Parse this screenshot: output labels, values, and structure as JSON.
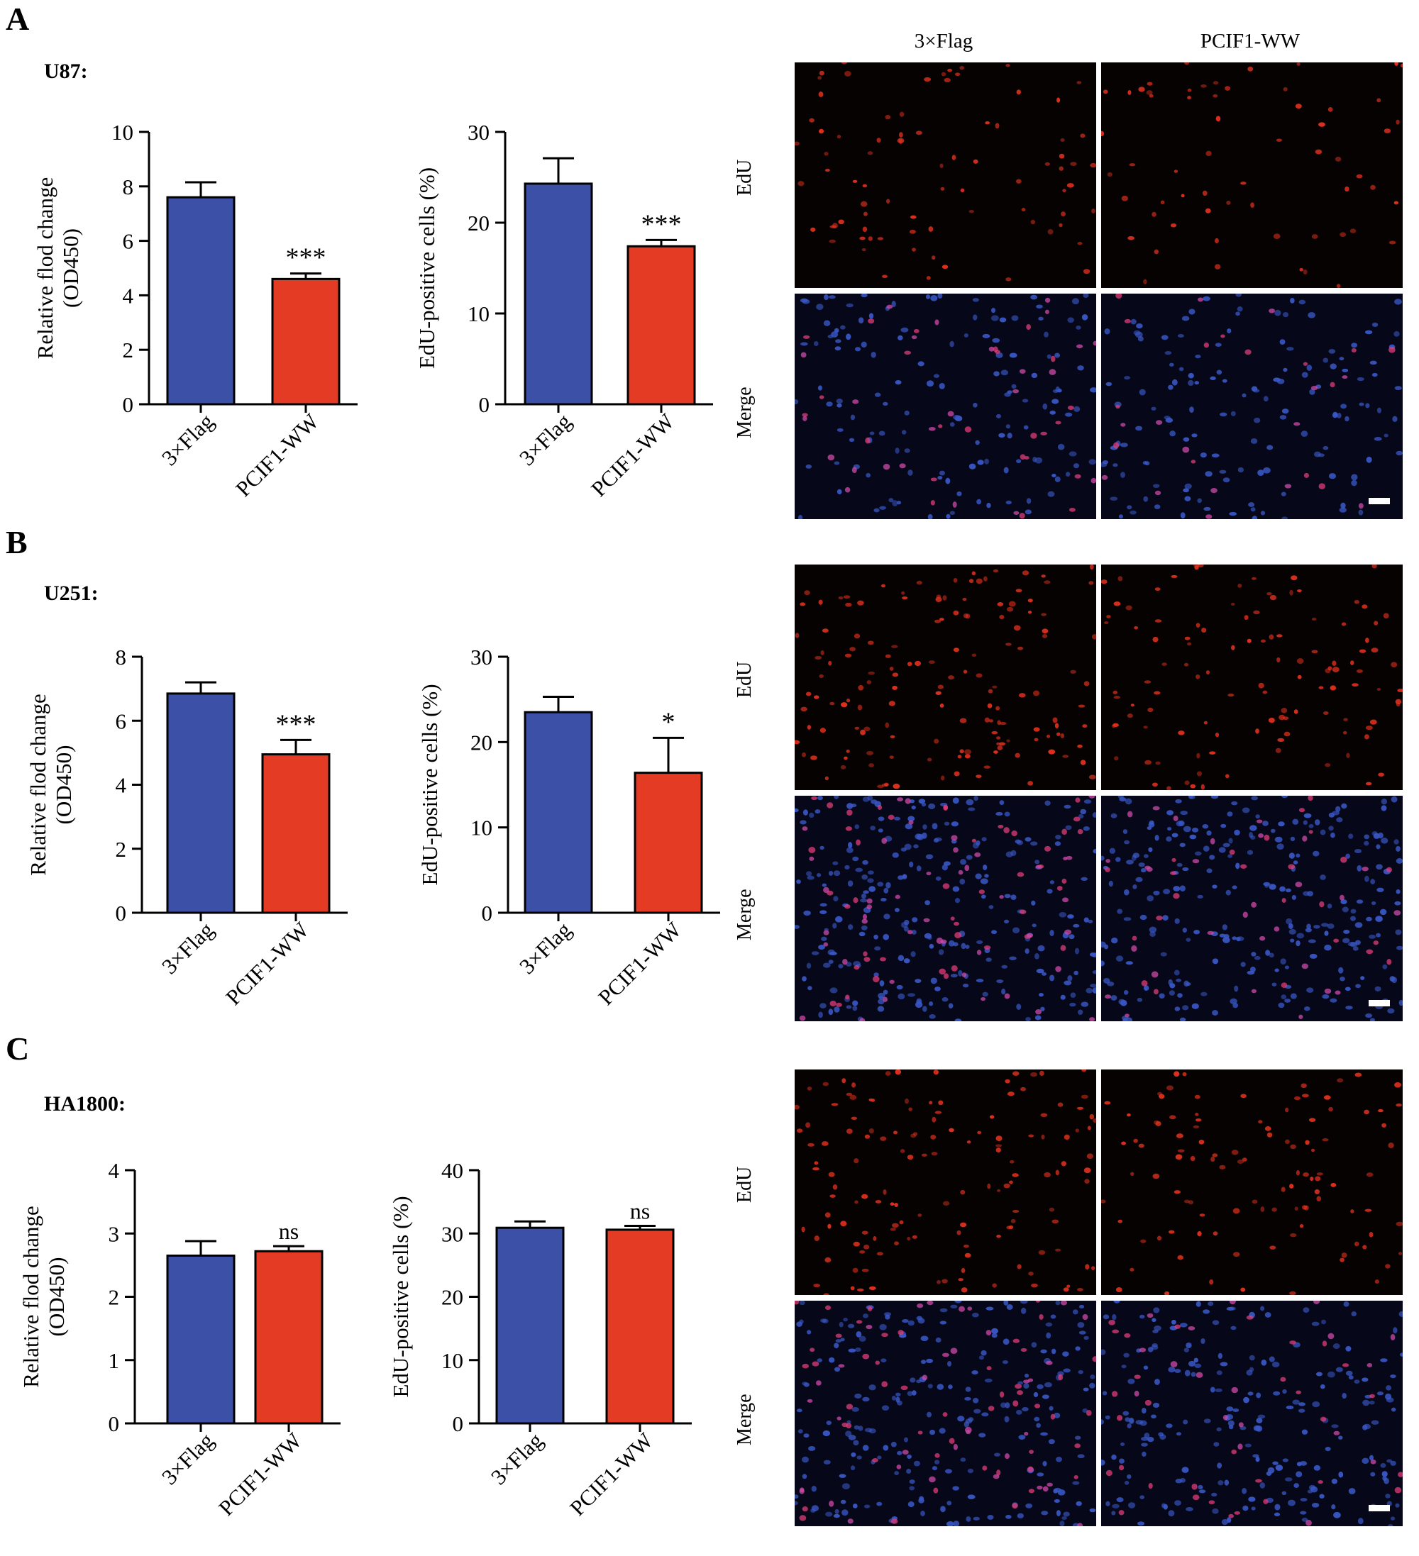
{
  "panels": [
    {
      "letter": "A",
      "cell_line": "U87:",
      "channels": [
        "EdU",
        "Merge"
      ],
      "channel_colors": {
        "EdU": "#e8321e",
        "Merge": "#3f5fd8"
      }
    },
    {
      "letter": "B",
      "cell_line": "U251:",
      "channels": [
        "EdU",
        "Merge"
      ],
      "channel_colors": {
        "EdU": "#e8321e",
        "Merge": "#3f5fd8"
      }
    },
    {
      "letter": "C",
      "cell_line": "HA1800:",
      "channels": [
        "EdU",
        "Merge"
      ],
      "channel_colors": {
        "EdU": "#e8321e",
        "Merge": "#3f5fd8"
      }
    }
  ],
  "image_columns": [
    "3×Flag",
    "PCIF1-WW"
  ],
  "chart_data": [
    {
      "panel": "A",
      "type": "bar",
      "ylabel": [
        "Relative flod change",
        "(OD450)"
      ],
      "ylim": [
        0,
        10
      ],
      "yticks": [
        0,
        2,
        4,
        6,
        8,
        10
      ],
      "categories": [
        "3×Flag",
        "PCIF1-WW"
      ],
      "values": [
        7.6,
        4.6
      ],
      "errors": [
        0.55,
        0.2
      ],
      "annotations": [
        "",
        "***"
      ],
      "colors": [
        "#3c50a8",
        "#e33b24"
      ]
    },
    {
      "panel": "A",
      "type": "bar",
      "ylabel": [
        "EdU-positive cells (%)"
      ],
      "ylim": [
        0,
        30
      ],
      "yticks": [
        0,
        10,
        20,
        30
      ],
      "categories": [
        "3×Flag",
        "PCIF1-WW"
      ],
      "values": [
        24.3,
        17.4
      ],
      "errors": [
        2.8,
        0.7
      ],
      "annotations": [
        "",
        "***"
      ],
      "colors": [
        "#3c50a8",
        "#e33b24"
      ]
    },
    {
      "panel": "B",
      "type": "bar",
      "ylabel": [
        "Relative flod change",
        "(OD450)"
      ],
      "ylim": [
        0,
        8
      ],
      "yticks": [
        0,
        2,
        4,
        6,
        8
      ],
      "categories": [
        "3×Flag",
        "PCIF1-WW"
      ],
      "values": [
        6.85,
        4.95
      ],
      "errors": [
        0.35,
        0.45
      ],
      "annotations": [
        "",
        "***"
      ],
      "colors": [
        "#3c50a8",
        "#e33b24"
      ]
    },
    {
      "panel": "B",
      "type": "bar",
      "ylabel": [
        "EdU-positive cells (%)"
      ],
      "ylim": [
        0,
        30
      ],
      "yticks": [
        0,
        10,
        20,
        30
      ],
      "categories": [
        "3×Flag",
        "PCIF1-WW"
      ],
      "values": [
        23.5,
        16.4
      ],
      "errors": [
        1.8,
        4.1
      ],
      "annotations": [
        "",
        "*"
      ],
      "colors": [
        "#3c50a8",
        "#e33b24"
      ]
    },
    {
      "panel": "C",
      "type": "bar",
      "ylabel": [
        "Relative flod change",
        "(OD450)"
      ],
      "ylim": [
        0,
        4
      ],
      "yticks": [
        0,
        1,
        2,
        3,
        4
      ],
      "categories": [
        "3×Flag",
        "PCIF1-WW"
      ],
      "values": [
        2.65,
        2.72
      ],
      "errors": [
        0.23,
        0.08
      ],
      "annotations": [
        "",
        "ns"
      ],
      "colors": [
        "#3c50a8",
        "#e33b24"
      ]
    },
    {
      "panel": "C",
      "type": "bar",
      "ylabel": [
        "EdU-positive cells (%)"
      ],
      "ylim": [
        0,
        40
      ],
      "yticks": [
        0,
        10,
        20,
        30,
        40
      ],
      "categories": [
        "3×Flag",
        "PCIF1-WW"
      ],
      "values": [
        30.9,
        30.6
      ],
      "errors": [
        1.0,
        0.6
      ],
      "annotations": [
        "",
        "ns"
      ],
      "colors": [
        "#3c50a8",
        "#e33b24"
      ]
    }
  ]
}
